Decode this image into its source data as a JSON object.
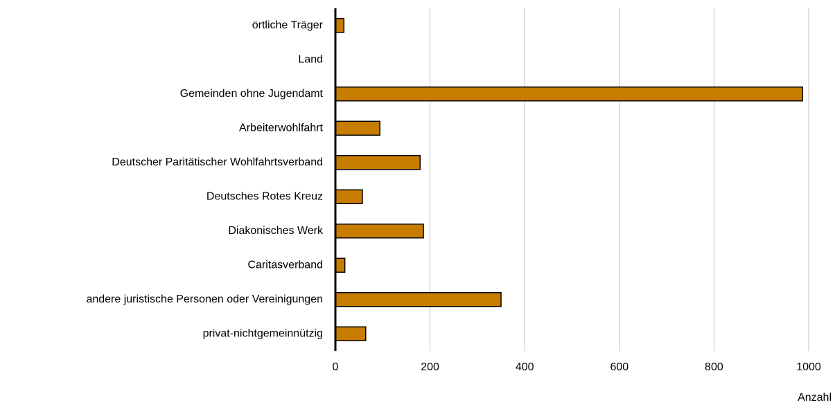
{
  "chart_data": {
    "type": "barh",
    "categories": [
      "örtliche Träger",
      "Land",
      "Gemeinden ohne Jugendamt",
      "Arbeiterwohlfahrt",
      "Deutscher Paritätischer Wohlfahrtsverband",
      "Deutsches Rotes Kreuz",
      "Diakonisches Werk",
      "Caritasverband",
      "andere juristische Personen oder Vereinigungen",
      "privat-nichtgemeinnützig"
    ],
    "values": [
      18,
      0,
      987,
      94,
      179,
      57,
      186,
      20,
      350,
      64
    ],
    "color": "#c87d00",
    "x_label": "Anzahl",
    "xlim": [
      0,
      1000
    ],
    "xticks": [
      0,
      200,
      400,
      600,
      800,
      1000
    ],
    "grid": true
  }
}
